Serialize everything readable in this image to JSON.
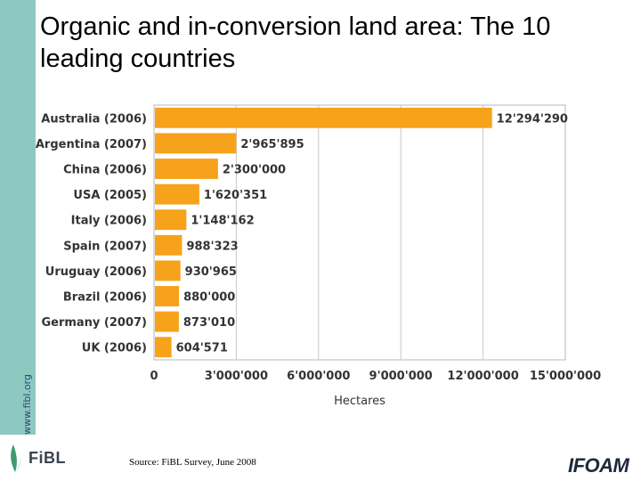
{
  "slide": {
    "title": "Organic and in-conversion land area: The 10 leading countries",
    "side_url": "www.fibl.org",
    "source": "Source: FiBL Survey, June 2008",
    "logo_left": "FiBL",
    "logo_right": "IFOAM"
  },
  "chart_data": {
    "type": "bar",
    "orientation": "horizontal",
    "categories": [
      "Australia (2006)",
      "Argentina (2007)",
      "China (2006)",
      "USA (2005)",
      "Italy (2006)",
      "Spain (2007)",
      "Uruguay (2006)",
      "Brazil (2006)",
      "Germany (2007)",
      "UK (2006)"
    ],
    "values": [
      12294290,
      2965895,
      2300000,
      1620351,
      1148162,
      988323,
      930965,
      880000,
      873010,
      604571
    ],
    "value_labels": [
      "12'294'290",
      "2'965'895",
      "2'300'000",
      "1'620'351",
      "1'148'162",
      "988'323",
      "930'965",
      "880'000",
      "873'010",
      "604'571"
    ],
    "xlabel": "Hectares",
    "xlim": [
      0,
      15000000
    ],
    "x_ticks": [
      0,
      3000000,
      6000000,
      9000000,
      12000000,
      15000000
    ],
    "x_tick_labels": [
      "0",
      "3'000'000",
      "6'000'000",
      "9'000'000",
      "12'000'000",
      "15'000'000"
    ],
    "bar_color": "#f7a21b",
    "grid": true
  }
}
